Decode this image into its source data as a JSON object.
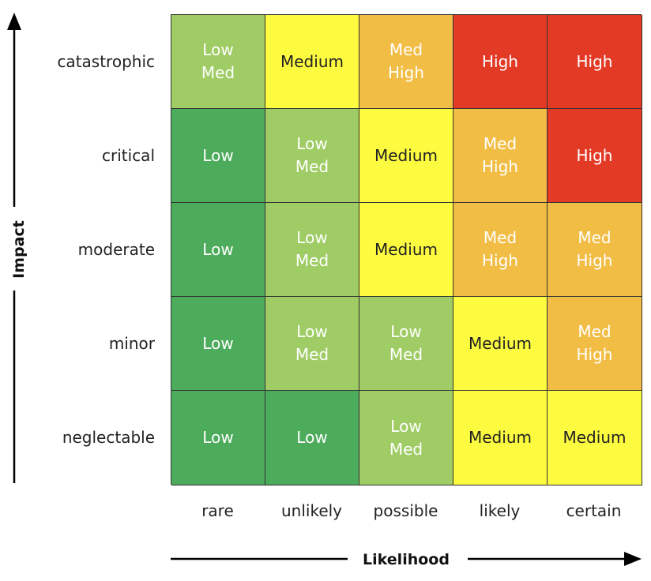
{
  "axes": {
    "y_title": "Impact",
    "x_title": "Likelihood"
  },
  "rows": [
    {
      "label": "catastrophic",
      "cells": [
        {
          "lines": [
            "Low",
            "Med"
          ],
          "level": "low-med"
        },
        {
          "lines": [
            "Medium"
          ],
          "level": "medium"
        },
        {
          "lines": [
            "Med",
            "High"
          ],
          "level": "med-high"
        },
        {
          "lines": [
            "High"
          ],
          "level": "high"
        },
        {
          "lines": [
            "High"
          ],
          "level": "high"
        }
      ]
    },
    {
      "label": "critical",
      "cells": [
        {
          "lines": [
            "Low"
          ],
          "level": "low"
        },
        {
          "lines": [
            "Low",
            "Med"
          ],
          "level": "low-med"
        },
        {
          "lines": [
            "Medium"
          ],
          "level": "medium"
        },
        {
          "lines": [
            "Med",
            "High"
          ],
          "level": "med-high"
        },
        {
          "lines": [
            "High"
          ],
          "level": "high"
        }
      ]
    },
    {
      "label": "moderate",
      "cells": [
        {
          "lines": [
            "Low"
          ],
          "level": "low"
        },
        {
          "lines": [
            "Low",
            "Med"
          ],
          "level": "low-med"
        },
        {
          "lines": [
            "Medium"
          ],
          "level": "medium"
        },
        {
          "lines": [
            "Med",
            "High"
          ],
          "level": "med-high"
        },
        {
          "lines": [
            "Med",
            "High"
          ],
          "level": "med-high"
        }
      ]
    },
    {
      "label": "minor",
      "cells": [
        {
          "lines": [
            "Low"
          ],
          "level": "low"
        },
        {
          "lines": [
            "Low",
            "Med"
          ],
          "level": "low-med"
        },
        {
          "lines": [
            "Low",
            "Med"
          ],
          "level": "low-med"
        },
        {
          "lines": [
            "Medium"
          ],
          "level": "medium"
        },
        {
          "lines": [
            "Med",
            "High"
          ],
          "level": "med-high"
        }
      ]
    },
    {
      "label": "neglectable",
      "cells": [
        {
          "lines": [
            "Low"
          ],
          "level": "low"
        },
        {
          "lines": [
            "Low"
          ],
          "level": "low"
        },
        {
          "lines": [
            "Low",
            "Med"
          ],
          "level": "low-med"
        },
        {
          "lines": [
            "Medium"
          ],
          "level": "medium"
        },
        {
          "lines": [
            "Medium"
          ],
          "level": "medium"
        }
      ]
    }
  ],
  "columns": [
    "rare",
    "unlikely",
    "possible",
    "likely",
    "certain"
  ],
  "colors": {
    "low": {
      "bg": "#4dab5c",
      "fg": "#ffffff"
    },
    "low-med": {
      "bg": "#9fcc64",
      "fg": "#ffffff"
    },
    "medium": {
      "bg": "#fdfb40",
      "fg": "#222222"
    },
    "med-high": {
      "bg": "#f2bd45",
      "fg": "#ffffff"
    },
    "high": {
      "bg": "#e33a26",
      "fg": "#ffffff"
    }
  }
}
